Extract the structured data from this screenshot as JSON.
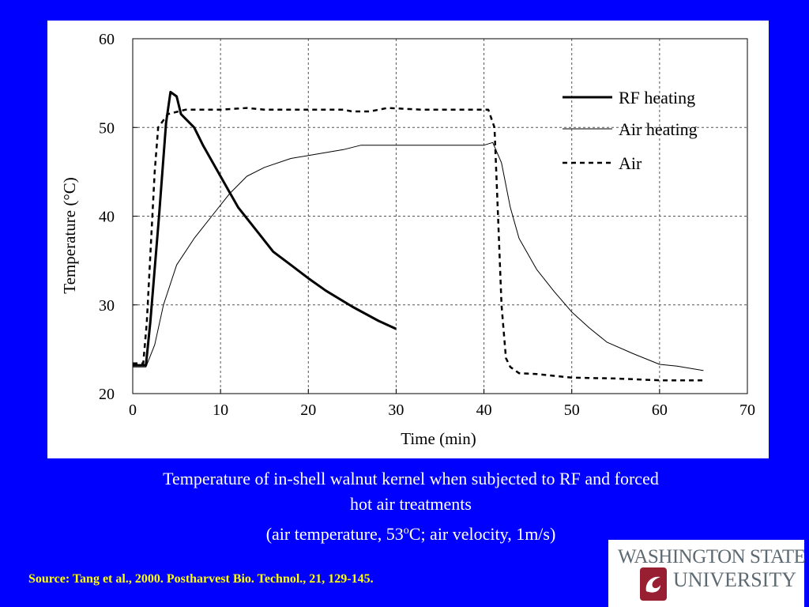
{
  "chart_data": {
    "type": "line",
    "xlabel": "Time (min)",
    "ylabel": "Temperature (°C)",
    "xlim": [
      0,
      70
    ],
    "ylim": [
      20,
      60
    ],
    "x_ticks": [
      "0",
      "10",
      "20",
      "30",
      "40",
      "50",
      "60",
      "70"
    ],
    "y_ticks": [
      "20",
      "30",
      "40",
      "50",
      "60"
    ],
    "grid": true,
    "legend_position": "top-right",
    "series": [
      {
        "name": "RF heating",
        "style": "thick-solid",
        "points": [
          [
            0,
            23.2
          ],
          [
            1.5,
            23.2
          ],
          [
            2,
            28
          ],
          [
            3,
            40
          ],
          [
            3.8,
            50.5
          ],
          [
            4.3,
            54
          ],
          [
            5,
            53.5
          ],
          [
            5.5,
            51.5
          ],
          [
            7,
            50
          ],
          [
            8,
            48
          ],
          [
            10,
            44.5
          ],
          [
            12,
            41
          ],
          [
            14,
            38.5
          ],
          [
            16,
            36
          ],
          [
            18,
            34.5
          ],
          [
            20,
            33
          ],
          [
            22,
            31.6
          ],
          [
            25,
            29.8
          ],
          [
            28,
            28.2
          ],
          [
            30,
            27.3
          ]
        ]
      },
      {
        "name": "Air heating",
        "style": "thin-solid",
        "points": [
          [
            0,
            23
          ],
          [
            1.5,
            23
          ],
          [
            2.5,
            25.5
          ],
          [
            3.5,
            30
          ],
          [
            4.5,
            33
          ],
          [
            5,
            34.5
          ],
          [
            7,
            37.5
          ],
          [
            9,
            40
          ],
          [
            11,
            42.5
          ],
          [
            13,
            44.5
          ],
          [
            15,
            45.5
          ],
          [
            18,
            46.5
          ],
          [
            21,
            47
          ],
          [
            24,
            47.5
          ],
          [
            26,
            48
          ],
          [
            30,
            48
          ],
          [
            35,
            48
          ],
          [
            40,
            48
          ],
          [
            41,
            48.3
          ],
          [
            42,
            46
          ],
          [
            43,
            41
          ],
          [
            44,
            37.5
          ],
          [
            46,
            34
          ],
          [
            48,
            31.5
          ],
          [
            50,
            29.2
          ],
          [
            52,
            27.4
          ],
          [
            54,
            25.8
          ],
          [
            57,
            24.5
          ],
          [
            60,
            23.3
          ],
          [
            62,
            23.1
          ],
          [
            65,
            22.6
          ]
        ]
      },
      {
        "name": "Air",
        "style": "dashed",
        "points": [
          [
            0,
            23.4
          ],
          [
            1.2,
            23.4
          ],
          [
            1.6,
            28
          ],
          [
            2.5,
            45
          ],
          [
            2.9,
            50
          ],
          [
            4,
            51.5
          ],
          [
            6,
            52
          ],
          [
            10,
            52
          ],
          [
            13,
            52.2
          ],
          [
            15,
            52
          ],
          [
            20,
            52
          ],
          [
            24,
            52
          ],
          [
            25,
            51.8
          ],
          [
            27,
            51.8
          ],
          [
            29,
            52.2
          ],
          [
            33,
            52
          ],
          [
            37,
            52
          ],
          [
            40.5,
            52
          ],
          [
            41.2,
            50
          ],
          [
            41.6,
            40
          ],
          [
            42,
            30
          ],
          [
            42.5,
            24
          ],
          [
            43,
            23
          ],
          [
            44,
            22.3
          ],
          [
            46,
            22.2
          ],
          [
            50,
            21.8
          ],
          [
            55,
            21.7
          ],
          [
            60,
            21.5
          ],
          [
            65,
            21.5
          ]
        ]
      }
    ]
  },
  "caption": {
    "line1": "Temperature of in-shell walnut kernel when subjected to RF and forced",
    "line2": "hot air treatments",
    "line3_pre": "(air temperature, 53",
    "line3_sup": "o",
    "line3_post": "C; air velocity, 1m/s)"
  },
  "source": "Source: Tang et al., 2000. Postharvest Bio. Technol., 21, 129-145.",
  "logo": {
    "line1": "WASHINGTON STATE",
    "line2": "UNIVERSITY"
  },
  "colors": {
    "background": "#0000ff",
    "caption_text": "#ffffff",
    "source_text": "#ffff00",
    "logo_gray": "#5e6a71",
    "logo_crimson": "#981e32"
  }
}
